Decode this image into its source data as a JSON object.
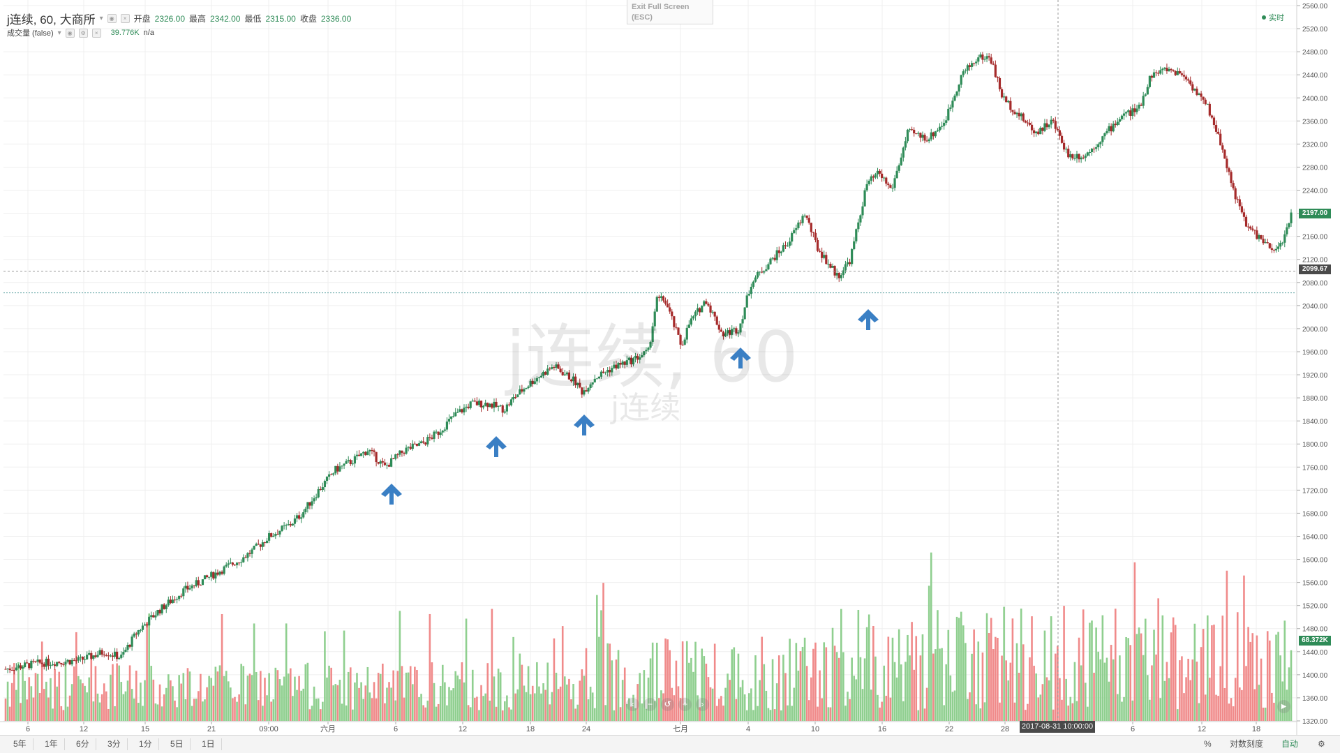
{
  "legend": {
    "symbol": "j连续, 60, 大商所",
    "open_label": "开盘",
    "open": "2326.00",
    "high_label": "最高",
    "high": "2342.00",
    "low_label": "最低",
    "low": "2315.00",
    "close_label": "收盘",
    "close": "2336.00",
    "volume_label": "成交量 (false)",
    "volume_value": "39.776K",
    "volume_extra": "n/a"
  },
  "exit_fullscreen": {
    "line1": "Exit Full Screen",
    "line2": "(ESC)"
  },
  "realtime_label": "实时",
  "watermark": {
    "main": "j连续, 60",
    "sub": "j连续"
  },
  "price_axis": {
    "ticks": [
      "2560.00",
      "2520.00",
      "2480.00",
      "2440.00",
      "2400.00",
      "2360.00",
      "2320.00",
      "2280.00",
      "2240.00",
      "2200.00",
      "2160.00",
      "2120.00",
      "2080.00",
      "2040.00",
      "2000.00",
      "1960.00",
      "1920.00",
      "1880.00",
      "1840.00",
      "1800.00",
      "1760.00",
      "1720.00",
      "1680.00",
      "1640.00",
      "1600.00",
      "1560.00",
      "1520.00",
      "1480.00",
      "1440.00",
      "1400.00",
      "1360.00",
      "1320.00"
    ],
    "last_price_tag": "2197.00",
    "crosshair_price_tag": "2099.67",
    "volume_tag": "68.372K"
  },
  "time_axis": {
    "ticks": [
      "6",
      "12",
      "15",
      "21",
      "09:00",
      "六月",
      "6",
      "12",
      "18",
      "24",
      "七月",
      "4",
      "10",
      "16",
      "22",
      "28",
      "6",
      "12",
      "18"
    ],
    "crosshair_time_tag": "2017-08-31 10:00:00"
  },
  "bottom_bar": {
    "timeframes": [
      "5年",
      "1年",
      "6分",
      "3分",
      "1分",
      "5日",
      "1日"
    ],
    "percent": "%",
    "log_scale": "对数刻度",
    "auto": "自动"
  },
  "colors": {
    "up": "#2e8b57",
    "down": "#a52a2a",
    "vol_up": "#8fcf8f",
    "vol_down": "#f08a8a",
    "arrow": "#3a7fc4"
  },
  "icons": [
    "settings-icon",
    "arrow-up-icon",
    "zoom-out-icon",
    "reset-icon",
    "zoom-in-icon",
    "scroll-left-icon",
    "scroll-right-icon",
    "go-to-realtime-icon"
  ],
  "chart_data": {
    "type": "candlestick",
    "instrument": "j连续",
    "interval": "60",
    "exchange": "大商所",
    "y_axis_range": [
      1300,
      2570
    ],
    "last_price": 2197.0,
    "crosshair_price": 2099.67,
    "ohlc_shown": {
      "open": 2326.0,
      "high": 2342.0,
      "low": 2315.0,
      "close": 2336.0
    },
    "volume_last": "68.372K",
    "price_path": [
      [
        0,
        1410
      ],
      [
        40,
        1420
      ],
      [
        90,
        1425
      ],
      [
        120,
        1440
      ],
      [
        140,
        1430
      ],
      [
        160,
        1475
      ],
      [
        185,
        1510
      ],
      [
        215,
        1545
      ],
      [
        235,
        1560
      ],
      [
        260,
        1580
      ],
      [
        285,
        1600
      ],
      [
        300,
        1615
      ],
      [
        320,
        1640
      ],
      [
        345,
        1660
      ],
      [
        360,
        1680
      ],
      [
        380,
        1720
      ],
      [
        400,
        1755
      ],
      [
        420,
        1770
      ],
      [
        440,
        1790
      ],
      [
        460,
        1760
      ],
      [
        485,
        1790
      ],
      [
        505,
        1800
      ],
      [
        525,
        1820
      ],
      [
        545,
        1850
      ],
      [
        565,
        1870
      ],
      [
        585,
        1870
      ],
      [
        605,
        1860
      ],
      [
        620,
        1885
      ],
      [
        640,
        1910
      ],
      [
        665,
        1935
      ],
      [
        690,
        1910
      ],
      [
        700,
        1890
      ],
      [
        715,
        1915
      ],
      [
        740,
        1935
      ],
      [
        760,
        1945
      ],
      [
        780,
        1960
      ],
      [
        790,
        2050
      ],
      [
        800,
        2050
      ],
      [
        820,
        1970
      ],
      [
        830,
        2010
      ],
      [
        850,
        2050
      ],
      [
        870,
        1990
      ],
      [
        890,
        2000
      ],
      [
        905,
        2080
      ],
      [
        930,
        2120
      ],
      [
        950,
        2150
      ],
      [
        970,
        2200
      ],
      [
        985,
        2140
      ],
      [
        1000,
        2110
      ],
      [
        1010,
        2090
      ],
      [
        1025,
        2120
      ],
      [
        1045,
        2250
      ],
      [
        1060,
        2270
      ],
      [
        1075,
        2240
      ],
      [
        1095,
        2340
      ],
      [
        1120,
        2330
      ],
      [
        1140,
        2360
      ],
      [
        1160,
        2440
      ],
      [
        1180,
        2470
      ],
      [
        1195,
        2470
      ],
      [
        1210,
        2400
      ],
      [
        1230,
        2370
      ],
      [
        1250,
        2340
      ],
      [
        1270,
        2360
      ],
      [
        1290,
        2300
      ],
      [
        1310,
        2300
      ],
      [
        1330,
        2330
      ],
      [
        1355,
        2370
      ],
      [
        1375,
        2380
      ],
      [
        1390,
        2440
      ],
      [
        1410,
        2450
      ],
      [
        1430,
        2440
      ],
      [
        1445,
        2410
      ],
      [
        1460,
        2380
      ],
      [
        1475,
        2320
      ],
      [
        1490,
        2240
      ],
      [
        1505,
        2180
      ],
      [
        1520,
        2160
      ],
      [
        1540,
        2130
      ],
      [
        1555,
        2170
      ],
      [
        1560,
        2197
      ]
    ]
  }
}
